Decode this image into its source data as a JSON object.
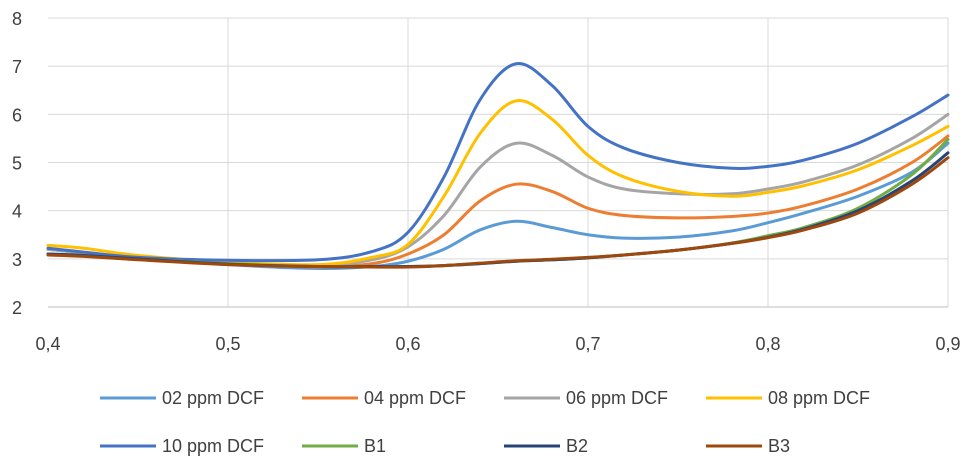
{
  "chart_data": {
    "type": "line",
    "title": "",
    "xlabel": "",
    "ylabel": "",
    "xlim": [
      0.4,
      0.9
    ],
    "ylim": [
      2,
      8
    ],
    "x_ticks": [
      "0,4",
      "0,5",
      "0,6",
      "0,7",
      "0,8",
      "0,9"
    ],
    "y_ticks": [
      "2",
      "3",
      "4",
      "5",
      "6",
      "7",
      "8"
    ],
    "grid": true,
    "legend_position": "bottom",
    "series": [
      {
        "name": "02 ppm DCF",
        "color": "#5b9bd5",
        "x": [
          0.4,
          0.42,
          0.45,
          0.5,
          0.55,
          0.58,
          0.6,
          0.62,
          0.64,
          0.66,
          0.68,
          0.7,
          0.72,
          0.75,
          0.78,
          0.8,
          0.82,
          0.85,
          0.88,
          0.9
        ],
        "y": [
          3.2,
          3.12,
          3.02,
          2.88,
          2.8,
          2.84,
          2.95,
          3.2,
          3.6,
          3.78,
          3.65,
          3.5,
          3.43,
          3.45,
          3.58,
          3.75,
          3.95,
          4.3,
          4.8,
          5.4
        ]
      },
      {
        "name": "04 ppm DCF",
        "color": "#ed7d31",
        "x": [
          0.4,
          0.42,
          0.45,
          0.5,
          0.55,
          0.58,
          0.6,
          0.62,
          0.64,
          0.66,
          0.68,
          0.7,
          0.72,
          0.75,
          0.78,
          0.8,
          0.82,
          0.85,
          0.88,
          0.9
        ],
        "y": [
          3.2,
          3.12,
          3.02,
          2.9,
          2.83,
          2.9,
          3.1,
          3.5,
          4.2,
          4.55,
          4.4,
          4.05,
          3.9,
          3.85,
          3.88,
          3.95,
          4.1,
          4.45,
          5.0,
          5.55
        ]
      },
      {
        "name": "06 ppm DCF",
        "color": "#a5a5a5",
        "x": [
          0.4,
          0.42,
          0.45,
          0.5,
          0.55,
          0.58,
          0.6,
          0.62,
          0.64,
          0.66,
          0.68,
          0.7,
          0.72,
          0.75,
          0.78,
          0.8,
          0.82,
          0.85,
          0.88,
          0.9
        ],
        "y": [
          3.2,
          3.12,
          3.02,
          2.91,
          2.86,
          2.98,
          3.25,
          3.9,
          4.9,
          5.4,
          5.15,
          4.7,
          4.45,
          4.35,
          4.35,
          4.45,
          4.6,
          4.95,
          5.5,
          6.0
        ]
      },
      {
        "name": "08 ppm DCF",
        "color": "#ffc000",
        "x": [
          0.4,
          0.42,
          0.45,
          0.5,
          0.55,
          0.58,
          0.6,
          0.62,
          0.64,
          0.66,
          0.68,
          0.7,
          0.72,
          0.75,
          0.78,
          0.8,
          0.82,
          0.85,
          0.88,
          0.9
        ],
        "y": [
          3.28,
          3.22,
          3.07,
          2.93,
          2.88,
          3.03,
          3.3,
          4.3,
          5.6,
          6.28,
          5.9,
          5.15,
          4.7,
          4.4,
          4.3,
          4.38,
          4.52,
          4.85,
          5.35,
          5.75
        ]
      },
      {
        "name": "10 ppm DCF",
        "color": "#4472c4",
        "x": [
          0.4,
          0.42,
          0.45,
          0.5,
          0.55,
          0.58,
          0.6,
          0.62,
          0.64,
          0.66,
          0.68,
          0.7,
          0.72,
          0.75,
          0.78,
          0.8,
          0.82,
          0.85,
          0.88,
          0.9
        ],
        "y": [
          3.22,
          3.14,
          3.03,
          2.97,
          2.98,
          3.15,
          3.55,
          4.7,
          6.3,
          7.05,
          6.6,
          5.75,
          5.3,
          5.0,
          4.88,
          4.92,
          5.05,
          5.4,
          5.95,
          6.4
        ]
      },
      {
        "name": "B1",
        "color": "#70ad47",
        "x": [
          0.4,
          0.42,
          0.45,
          0.5,
          0.55,
          0.58,
          0.6,
          0.62,
          0.64,
          0.66,
          0.68,
          0.7,
          0.72,
          0.75,
          0.78,
          0.8,
          0.82,
          0.85,
          0.88,
          0.9
        ],
        "y": [
          3.1,
          3.07,
          3.0,
          2.9,
          2.84,
          2.84,
          2.84,
          2.86,
          2.9,
          2.95,
          2.98,
          3.02,
          3.08,
          3.18,
          3.33,
          3.48,
          3.65,
          4.05,
          4.75,
          5.48
        ]
      },
      {
        "name": "B2",
        "color": "#264478",
        "x": [
          0.4,
          0.42,
          0.45,
          0.5,
          0.55,
          0.58,
          0.6,
          0.62,
          0.64,
          0.66,
          0.68,
          0.7,
          0.72,
          0.75,
          0.78,
          0.8,
          0.82,
          0.85,
          0.88,
          0.9
        ],
        "y": [
          3.1,
          3.07,
          3.0,
          2.89,
          2.84,
          2.84,
          2.84,
          2.86,
          2.9,
          2.95,
          2.98,
          3.02,
          3.08,
          3.18,
          3.32,
          3.45,
          3.62,
          4.0,
          4.62,
          5.2
        ]
      },
      {
        "name": "B3",
        "color": "#9e480e",
        "x": [
          0.4,
          0.42,
          0.45,
          0.5,
          0.55,
          0.58,
          0.6,
          0.62,
          0.64,
          0.66,
          0.68,
          0.7,
          0.72,
          0.75,
          0.78,
          0.8,
          0.82,
          0.85,
          0.88,
          0.9
        ],
        "y": [
          3.08,
          3.05,
          2.98,
          2.88,
          2.84,
          2.83,
          2.83,
          2.86,
          2.91,
          2.96,
          2.99,
          3.03,
          3.08,
          3.18,
          3.32,
          3.44,
          3.6,
          3.95,
          4.55,
          5.1
        ]
      }
    ]
  }
}
